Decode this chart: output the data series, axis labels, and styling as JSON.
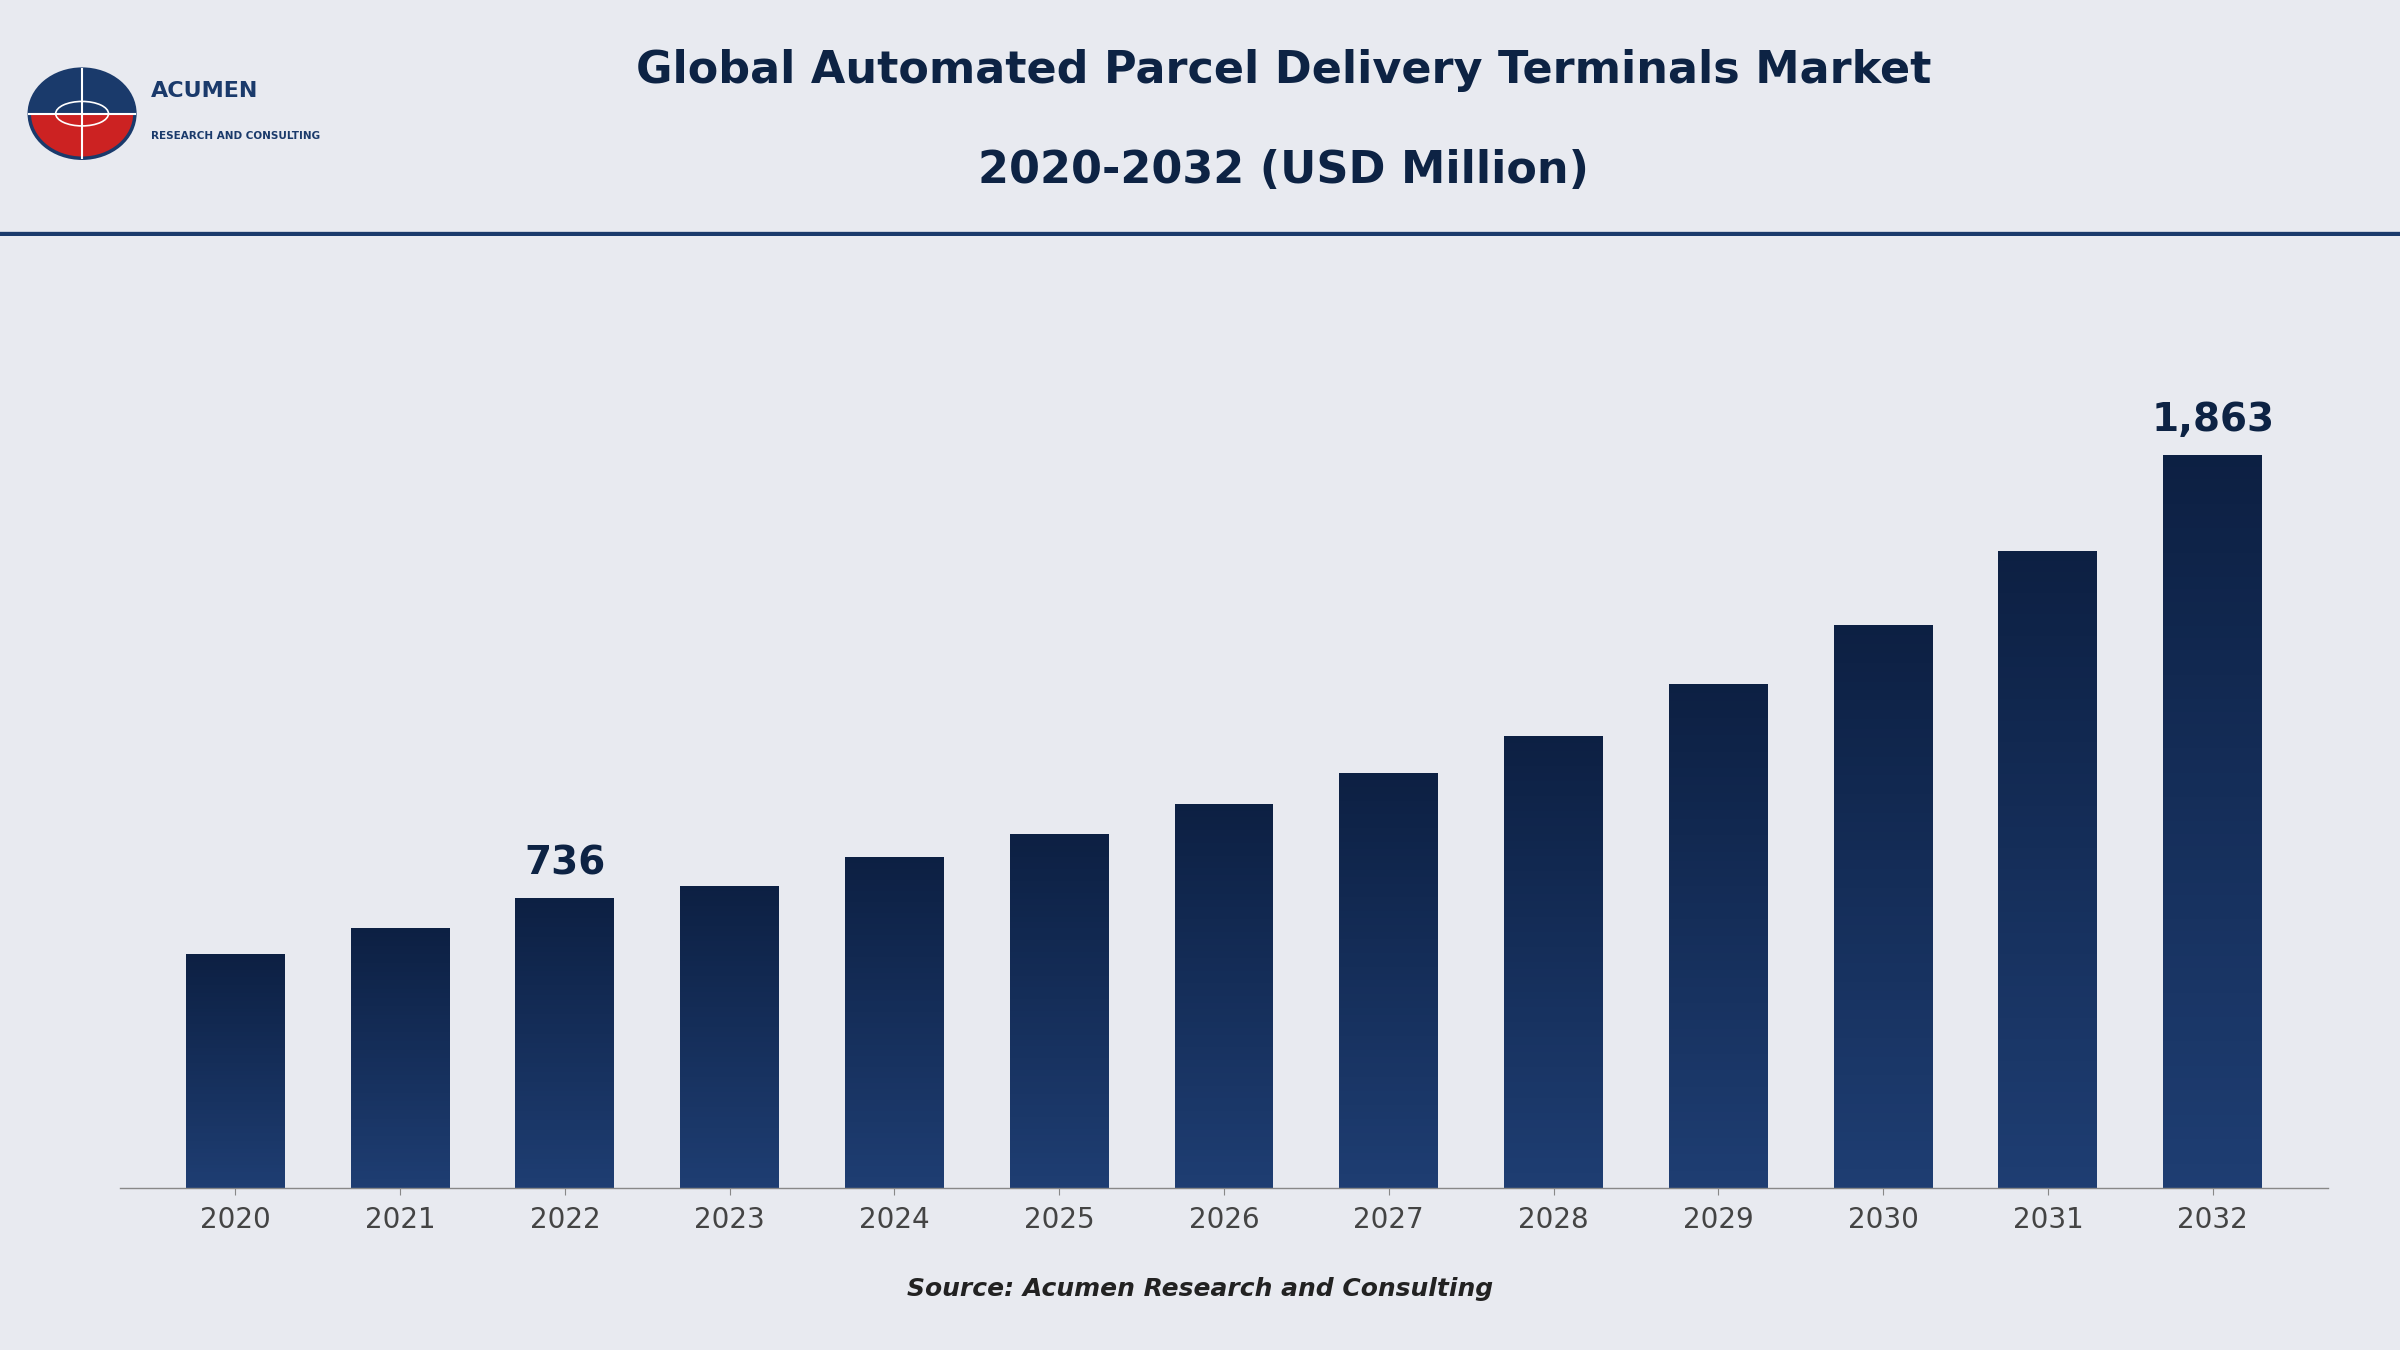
{
  "title_line1": "Global Automated Parcel Delivery Terminals Market",
  "title_line2": "2020-2032 (USD Million)",
  "categories": [
    "2020",
    "2021",
    "2022",
    "2023",
    "2024",
    "2025",
    "2026",
    "2027",
    "2028",
    "2029",
    "2030",
    "2031",
    "2032"
  ],
  "values": [
    595,
    660,
    736,
    768,
    840,
    900,
    975,
    1055,
    1150,
    1280,
    1430,
    1620,
    1863
  ],
  "bar_color": "#12294f",
  "bar_color_mid": "#1a3a6b",
  "background_color": "#e8eaf0",
  "header_bg_color": "#ffffff",
  "chart_area_bg": "#e8eaf0",
  "title_color": "#0d2344",
  "axis_label_color": "#444444",
  "label_2022": "736",
  "label_2032": "1,863",
  "source_text": "Source: Acumen Research and Consulting",
  "divider_color": "#1a3a6b",
  "tick_label_fontsize": 20,
  "title_fontsize_line1": 32,
  "title_fontsize_line2": 32,
  "source_fontsize": 18,
  "bar_width": 0.6
}
